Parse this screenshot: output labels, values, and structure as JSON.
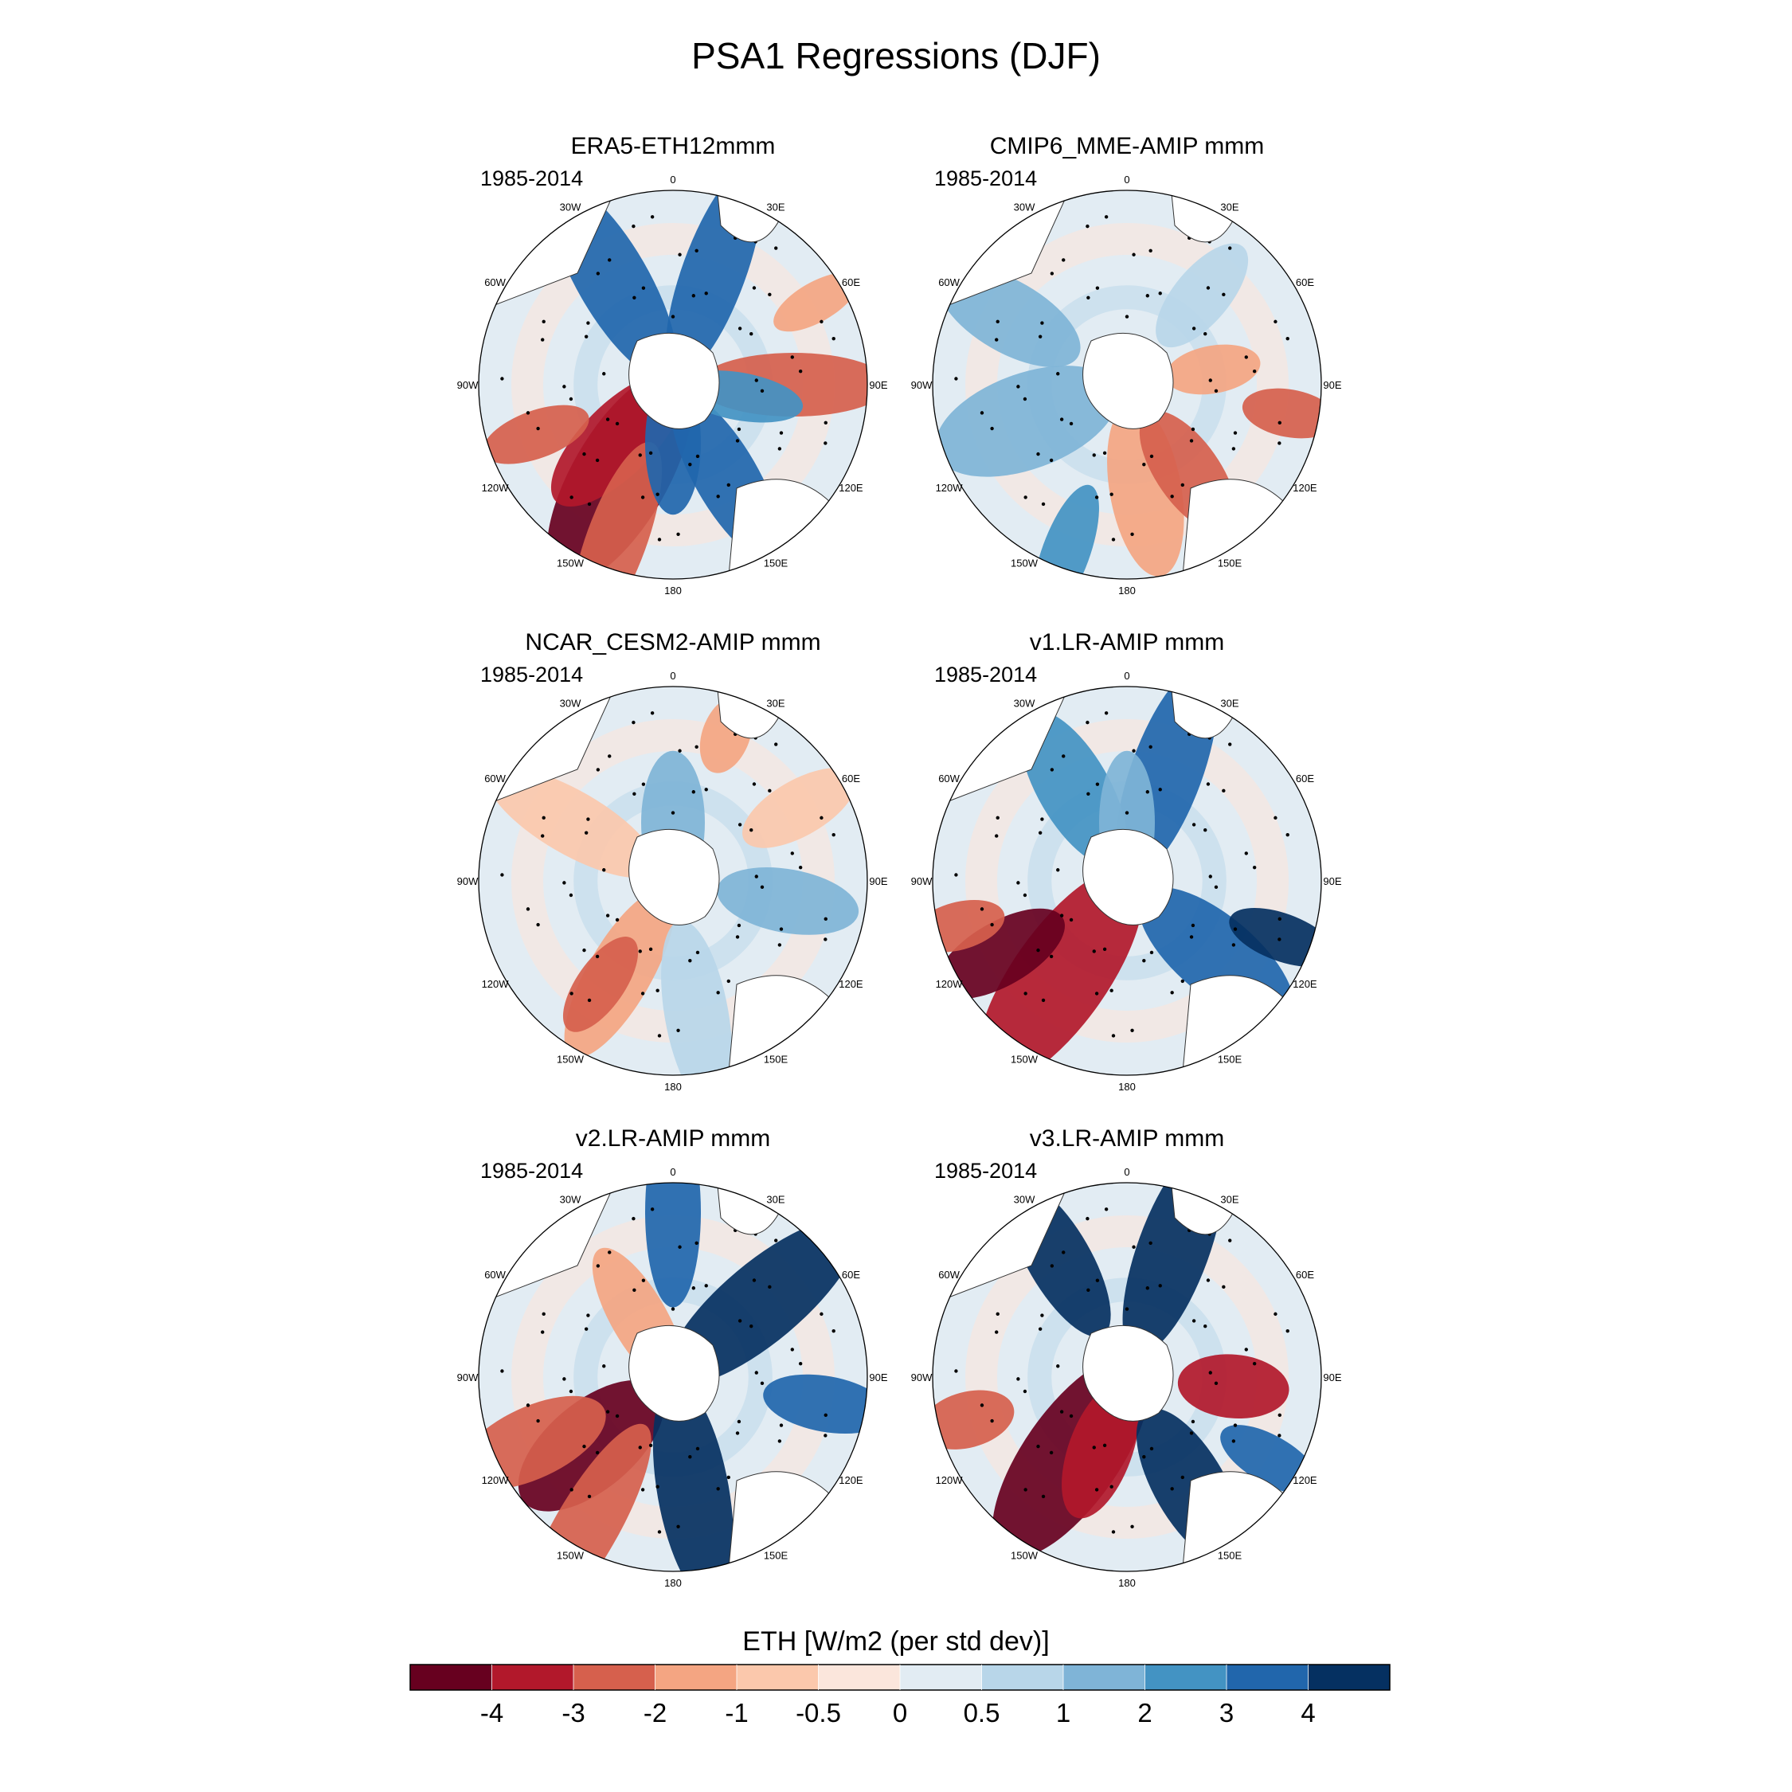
{
  "figure": {
    "title": "PSA1 Regressions (DJF)",
    "period_label": "1985-2014"
  },
  "longitude_labels": [
    "0",
    "30E",
    "60E",
    "90E",
    "120E",
    "150E",
    "180",
    "150W",
    "120W",
    "90W",
    "60W",
    "30W"
  ],
  "panels": [
    {
      "id": "era5",
      "title": "ERA5-ETH12mmm",
      "period": "1985-2014"
    },
    {
      "id": "cmip6",
      "title": "CMIP6_MME-AMIP  mmm",
      "period": "1985-2014"
    },
    {
      "id": "cesm2",
      "title": "NCAR_CESM2-AMIP  mmm",
      "period": "1985-2014"
    },
    {
      "id": "v1",
      "title": "v1.LR-AMIP  mmm",
      "period": "1985-2014"
    },
    {
      "id": "v2",
      "title": "v2.LR-AMIP  mmm",
      "period": "1985-2014"
    },
    {
      "id": "v3",
      "title": "v3.LR-AMIP  mmm",
      "period": "1985-2014"
    }
  ],
  "colorbar": {
    "title": "ETH [W/m2 (per std dev)]",
    "ticks": [
      "-4",
      "-3",
      "-2",
      "-1",
      "-0.5",
      "0",
      "0.5",
      "1",
      "2",
      "3",
      "4"
    ],
    "colors": [
      "#67001f",
      "#b2182b",
      "#d6604d",
      "#f4a582",
      "#fbc8ac",
      "#fbe6dc",
      "#e2ecf3",
      "#b8d6e9",
      "#7fb4d7",
      "#4393c3",
      "#2166ac",
      "#053061"
    ]
  }
}
